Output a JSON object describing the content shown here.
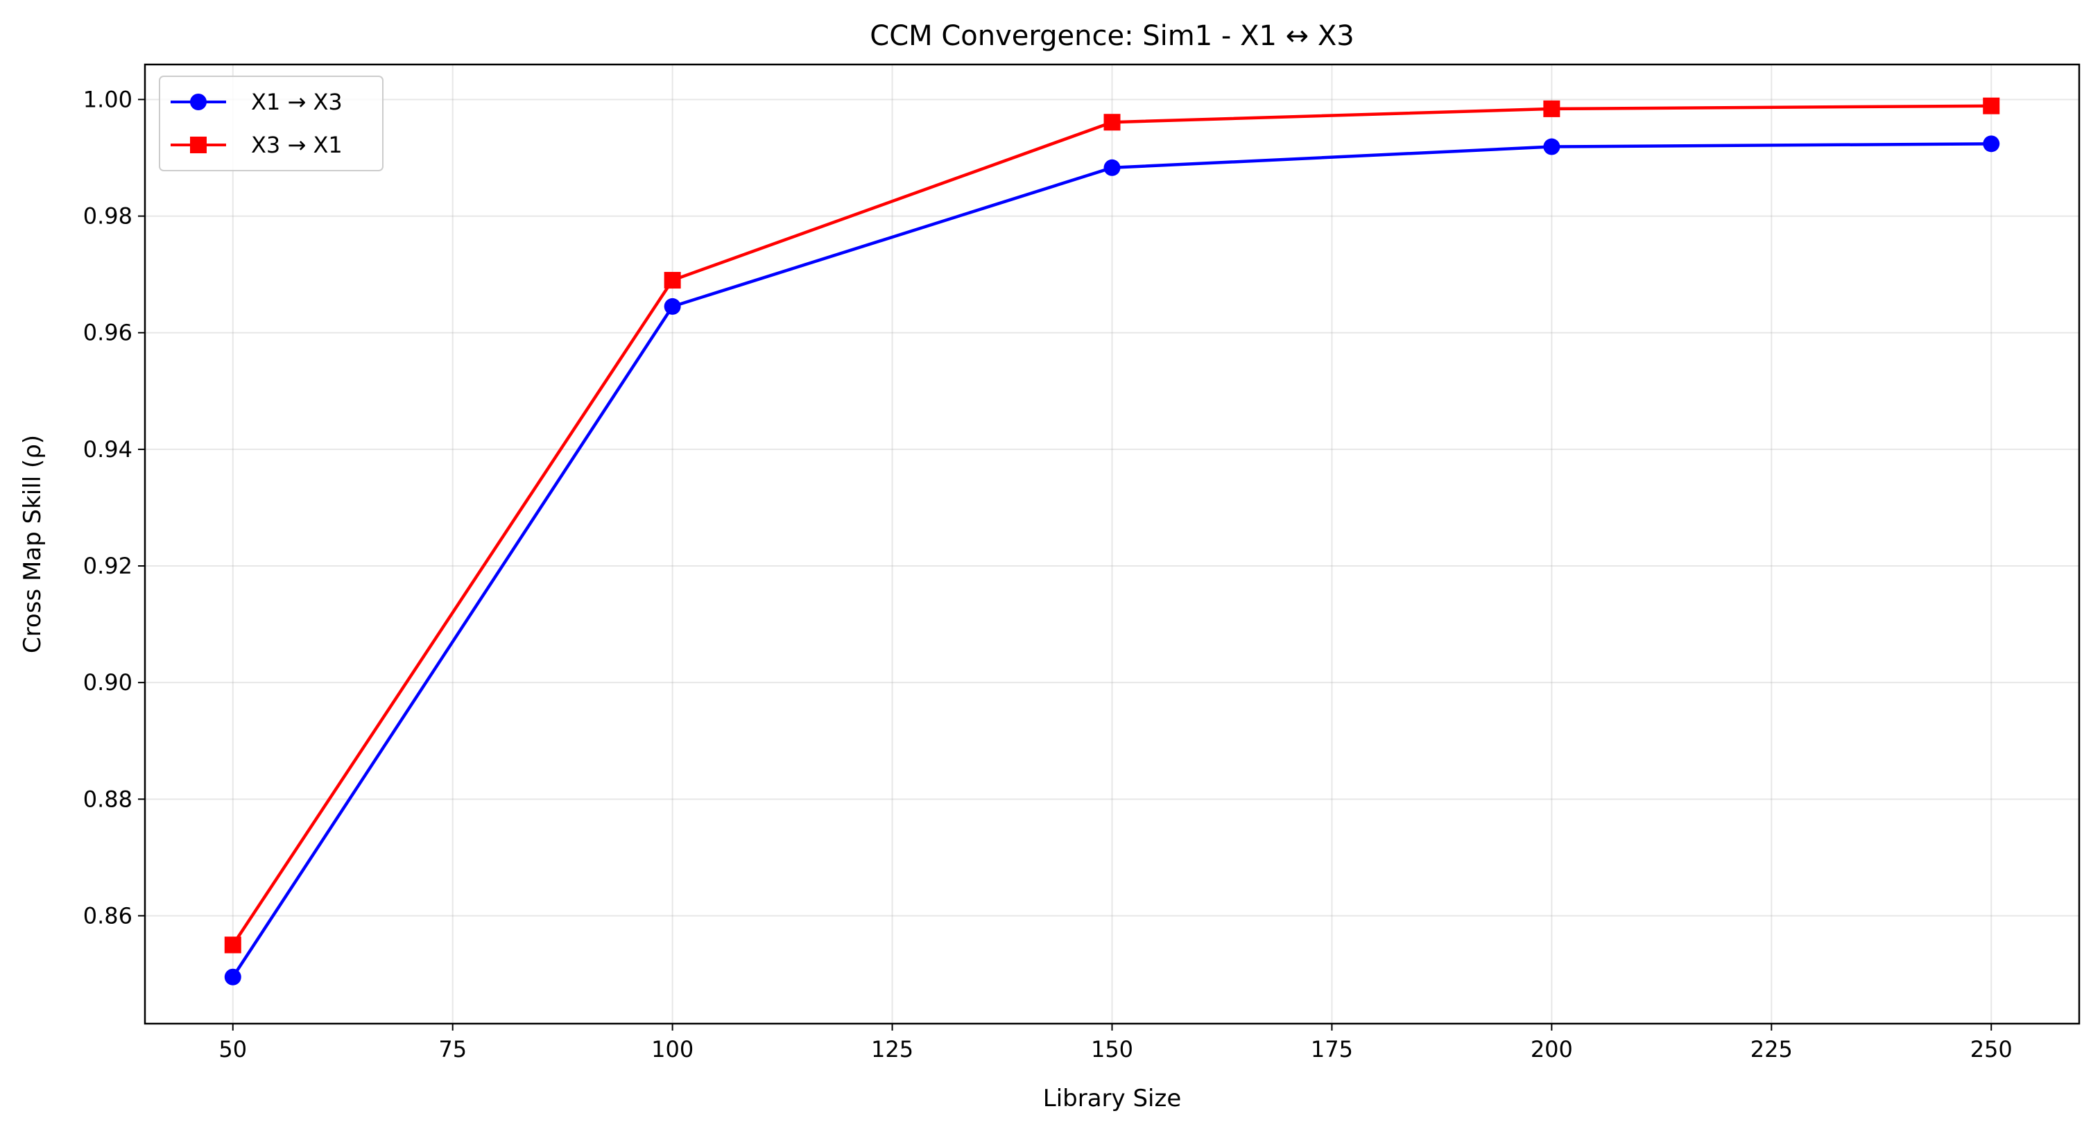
{
  "chart_data": {
    "type": "line",
    "title": "CCM Convergence: Sim1 - X1 ↔ X3",
    "xlabel": "Library Size",
    "ylabel": "Cross Map Skill (ρ)",
    "x": [
      50,
      100,
      150,
      200,
      250
    ],
    "xlim": [
      40,
      260
    ],
    "ylim": [
      0.8415,
      1.006
    ],
    "x_ticks": [
      50,
      75,
      100,
      125,
      150,
      175,
      200,
      225,
      250
    ],
    "x_tick_labels": [
      "50",
      "75",
      "100",
      "125",
      "150",
      "175",
      "200",
      "225",
      "250"
    ],
    "y_ticks": [
      0.86,
      0.88,
      0.9,
      0.92,
      0.94,
      0.96,
      0.98,
      1.0
    ],
    "y_tick_labels": [
      "0.86",
      "0.88",
      "0.90",
      "0.92",
      "0.94",
      "0.96",
      "0.98",
      "1.00"
    ],
    "grid": true,
    "legend_position": "top-left",
    "series": [
      {
        "name": "X1 → X3",
        "values": [
          0.8495,
          0.9645,
          0.9883,
          0.9919,
          0.9924
        ],
        "color": "#0000ff",
        "marker": "circle"
      },
      {
        "name": "X3 → X1",
        "values": [
          0.855,
          0.969,
          0.9961,
          0.9984,
          0.9989
        ],
        "color": "#ff0000",
        "marker": "square"
      }
    ]
  }
}
